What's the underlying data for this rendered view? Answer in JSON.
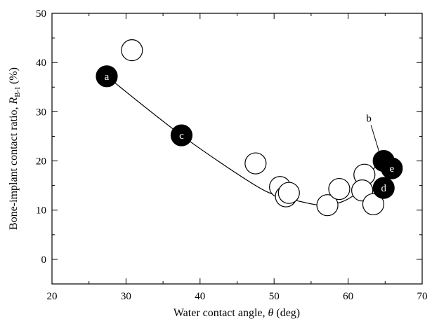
{
  "chart_data": {
    "type": "scatter",
    "title": "",
    "xlabel_parts": {
      "main": "Water contact angle, ",
      "symbol": "θ",
      "unit": " (deg)"
    },
    "ylabel_parts": {
      "main": "Bone-implant contact ratio, ",
      "symbol": "R",
      "sub": "B-I",
      "unit": " (%)"
    },
    "xlim": [
      20,
      70
    ],
    "ylim": [
      -5,
      50
    ],
    "x_ticks": [
      20,
      30,
      40,
      50,
      60,
      70
    ],
    "y_ticks": [
      0,
      10,
      20,
      30,
      40,
      50
    ],
    "grid": false,
    "series": [
      {
        "style": "open-circles",
        "points": [
          {
            "x": 30.8,
            "y": 42.5
          },
          {
            "x": 47.5,
            "y": 19.5
          },
          {
            "x": 50.8,
            "y": 14.7
          },
          {
            "x": 51.6,
            "y": 12.8
          },
          {
            "x": 52.0,
            "y": 13.5
          },
          {
            "x": 57.2,
            "y": 11.0
          },
          {
            "x": 58.8,
            "y": 14.3
          },
          {
            "x": 62.2,
            "y": 17.2
          },
          {
            "x": 61.9,
            "y": 14.0
          },
          {
            "x": 63.4,
            "y": 11.2
          }
        ]
      },
      {
        "style": "filled-circles",
        "points": [
          {
            "label": "a",
            "x": 27.4,
            "y": 37.2
          },
          {
            "label": "c",
            "x": 37.5,
            "y": 25.2
          },
          {
            "label": "",
            "x": 64.8,
            "y": 20.0
          },
          {
            "label": "d",
            "x": 64.8,
            "y": 14.5
          },
          {
            "label": "e",
            "x": 65.9,
            "y": 18.5
          }
        ]
      }
    ],
    "trend_line": [
      {
        "x": 27.4,
        "y": 37.2
      },
      {
        "x": 37.5,
        "y": 25.2
      },
      {
        "x": 47.5,
        "y": 15.0
      },
      {
        "x": 51.0,
        "y": 12.8
      },
      {
        "x": 54.0,
        "y": 11.6
      },
      {
        "x": 56.5,
        "y": 11.0
      },
      {
        "x": 59.0,
        "y": 11.6
      },
      {
        "x": 61.0,
        "y": 13.3
      },
      {
        "x": 62.5,
        "y": 16.0
      },
      {
        "x": 63.5,
        "y": 18.5
      },
      {
        "x": 64.3,
        "y": 19.5
      }
    ],
    "annotation": {
      "text": "b",
      "x": 62.8,
      "y": 28.0,
      "arrow_to": {
        "x": 64.4,
        "y": 20.8
      }
    },
    "colors": {
      "marker_fill": "#000000",
      "open_fill": "#ffffff",
      "line": "#000000",
      "label_on_filled": "#ffffff"
    }
  }
}
